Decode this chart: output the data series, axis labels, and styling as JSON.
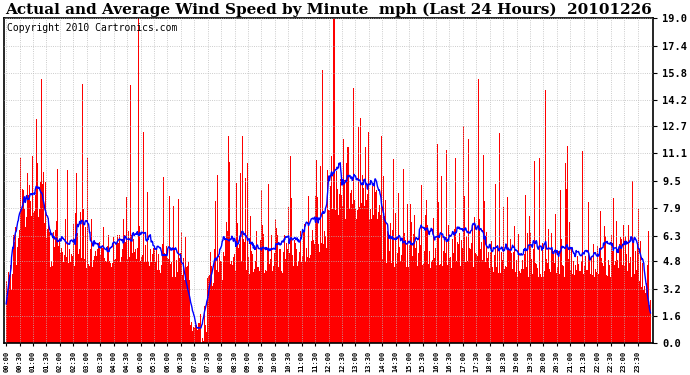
{
  "title": "Actual and Average Wind Speed by Minute  mph (Last 24 Hours)  20101226",
  "copyright": "Copyright 2010 Cartronics.com",
  "yticks": [
    0.0,
    1.6,
    3.2,
    4.8,
    6.3,
    7.9,
    9.5,
    11.1,
    12.7,
    14.2,
    15.8,
    17.4,
    19.0
  ],
  "ylim": [
    0.0,
    19.0
  ],
  "bar_color": "#FF0000",
  "avg_color": "#0000FF",
  "bg_color": "#FFFFFF",
  "grid_color": "#BBBBBB",
  "title_fontsize": 11,
  "copyright_fontsize": 7,
  "n_minutes": 1440,
  "x_tick_step": 30,
  "figwidth": 6.9,
  "figheight": 3.75,
  "dpi": 100
}
